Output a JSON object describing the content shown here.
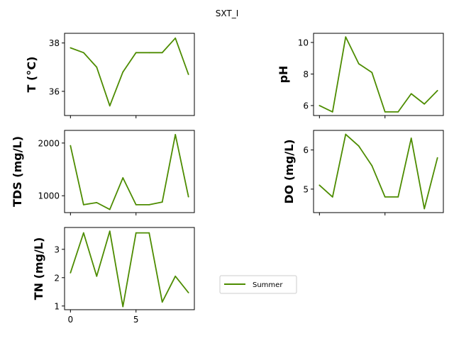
{
  "figure_title": "SXT_I",
  "line_color": "#4d8c00",
  "legend": {
    "label": "Summer",
    "placement": "lower-center"
  },
  "chart_data": [
    {
      "type": "line",
      "ylabel": "T  (°C)",
      "x": [
        0,
        1,
        2,
        3,
        4,
        5,
        6,
        7,
        8,
        9
      ],
      "series": [
        {
          "name": "Summer",
          "values": [
            37.8,
            37.6,
            37.0,
            35.4,
            36.8,
            37.6,
            37.6,
            37.6,
            38.2,
            36.7
          ]
        }
      ],
      "ylim": [
        35.0,
        38.4
      ],
      "yticks": [
        36,
        38
      ],
      "xlim": [
        -0.45,
        9.45
      ],
      "xticks": [
        0,
        5
      ],
      "show_xtick_labels": false
    },
    {
      "type": "line",
      "ylabel": "pH",
      "x": [
        0,
        1,
        2,
        3,
        4,
        5,
        6,
        7,
        8,
        9
      ],
      "series": [
        {
          "name": "Summer",
          "values": [
            6.0,
            5.6,
            10.35,
            8.65,
            8.1,
            5.6,
            5.6,
            6.75,
            6.1,
            6.95
          ]
        }
      ],
      "ylim": [
        5.37,
        10.58
      ],
      "yticks": [
        6,
        8,
        10
      ],
      "xlim": [
        -0.45,
        9.45
      ],
      "xticks": [
        0,
        5
      ],
      "show_xtick_labels": false
    },
    {
      "type": "line",
      "ylabel": "TDS (mg/L)",
      "x": [
        0,
        1,
        2,
        3,
        4,
        5,
        6,
        7,
        8,
        9
      ],
      "series": [
        {
          "name": "Summer",
          "values": [
            1950,
            830,
            870,
            740,
            1340,
            830,
            830,
            880,
            2160,
            980
          ]
        }
      ],
      "ylim": [
        680,
        2240
      ],
      "yticks": [
        1000,
        2000
      ],
      "xlim": [
        -0.45,
        9.45
      ],
      "xticks": [
        0,
        5
      ],
      "show_xtick_labels": false
    },
    {
      "type": "line",
      "ylabel": "DO (mg/L)",
      "x": [
        0,
        1,
        2,
        3,
        4,
        5,
        6,
        7,
        8,
        9
      ],
      "series": [
        {
          "name": "Summer",
          "values": [
            5.1,
            4.8,
            6.4,
            6.1,
            5.6,
            4.8,
            4.8,
            6.3,
            4.5,
            5.8
          ]
        }
      ],
      "ylim": [
        4.4,
        6.5
      ],
      "yticks": [
        5,
        6
      ],
      "xlim": [
        -0.45,
        9.45
      ],
      "xticks": [
        0,
        5
      ],
      "show_xtick_labels": false
    },
    {
      "type": "line",
      "ylabel": "TN (mg/L)",
      "x": [
        0,
        1,
        2,
        3,
        4,
        5,
        6,
        7,
        8,
        9
      ],
      "series": [
        {
          "name": "Summer",
          "values": [
            2.17,
            3.58,
            2.05,
            3.64,
            0.98,
            3.58,
            3.58,
            1.14,
            2.05,
            1.47
          ]
        }
      ],
      "ylim": [
        0.87,
        3.77
      ],
      "yticks": [
        1,
        2,
        3
      ],
      "xlim": [
        -0.45,
        9.45
      ],
      "xticks": [
        0,
        5
      ],
      "show_xtick_labels": true
    }
  ]
}
